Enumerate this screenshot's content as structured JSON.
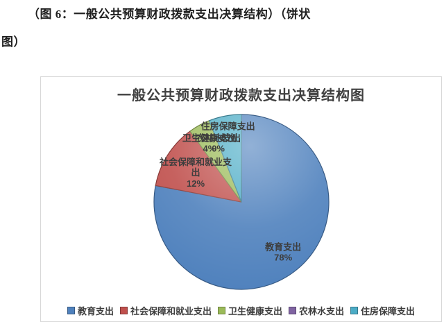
{
  "document": {
    "caption_line1": "（图 6：一般公共预算财政拨款支出决算结构）（饼状",
    "caption_line2": "图）"
  },
  "chart_data": {
    "type": "pie",
    "title": "一般公共预算财政拨款支出决算结构图",
    "direction": "clockwise",
    "start_angle": "12 o'clock",
    "legend_position": "bottom",
    "grid": false,
    "slices": [
      {
        "label": "教育支出",
        "value": 78,
        "percent_label": "78%",
        "color": "#4F81BD"
      },
      {
        "label": "社会保障和就业支出",
        "value": 12,
        "percent_label": "12%",
        "color": "#C0504D"
      },
      {
        "label": "卫生健康支出",
        "value": 4,
        "percent_label": "4%",
        "color": "#9BBB59"
      },
      {
        "label": "农林水支出",
        "value": 0,
        "percent_label": "0%",
        "color": "#8064A2"
      },
      {
        "label": "住房保障支出",
        "value": 6,
        "percent_label": "6%",
        "color": "#4BACC6"
      }
    ]
  }
}
